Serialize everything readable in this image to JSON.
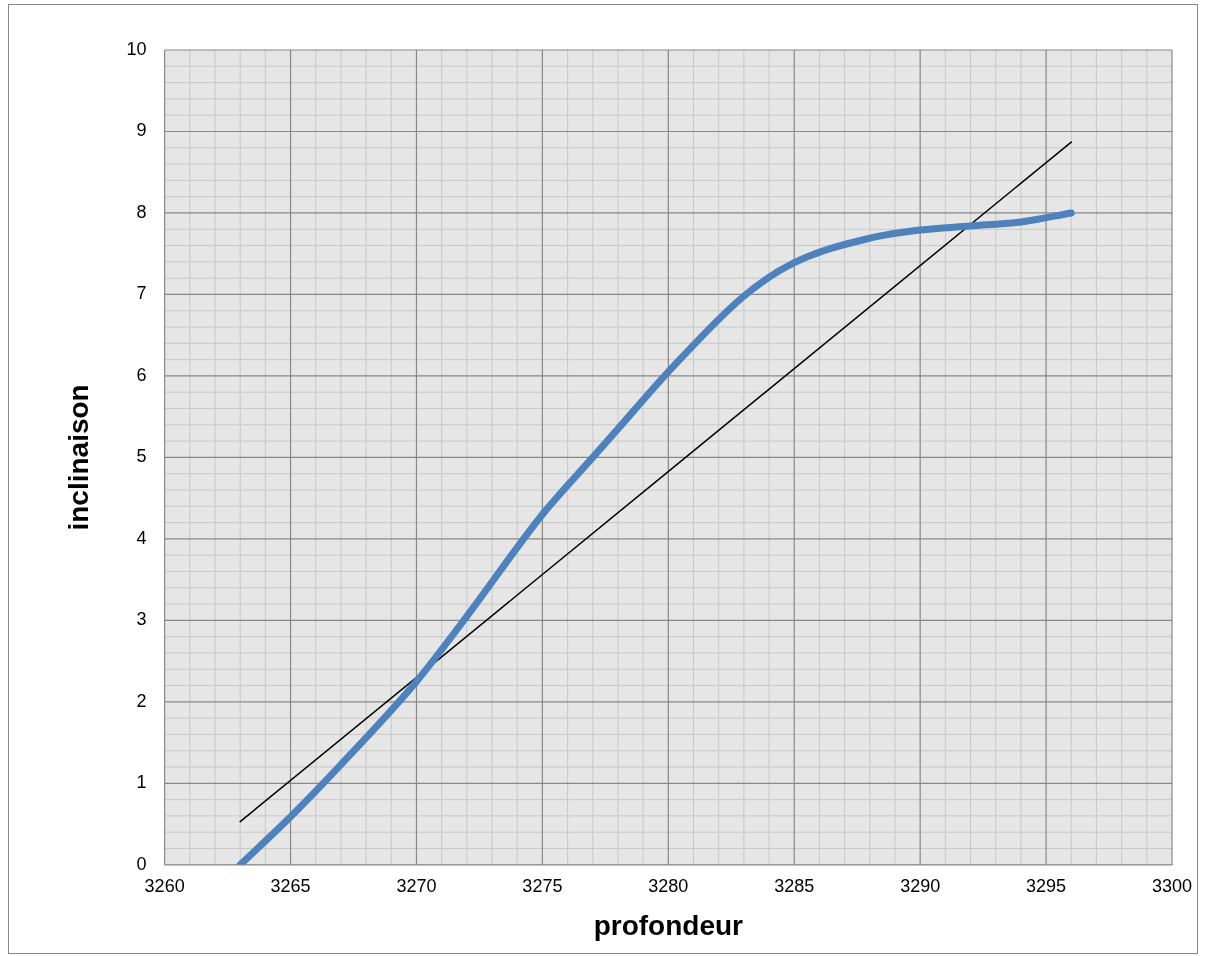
{
  "chart_data": {
    "type": "line",
    "xlabel": "profondeur",
    "ylabel": "inclinaison",
    "xlim": [
      3260,
      3300
    ],
    "xticks": [
      3260,
      3265,
      3270,
      3275,
      3280,
      3285,
      3290,
      3295,
      3300
    ],
    "ylim": [
      0,
      10
    ],
    "yticks": [
      0,
      1,
      2,
      3,
      4,
      5,
      6,
      7,
      8,
      9,
      10
    ],
    "grid": true,
    "legend": false,
    "marker": "none",
    "series": [
      {
        "color": "#4f81bd",
        "x": [
          3263,
          3265,
          3267,
          3270,
          3272,
          3275,
          3277,
          3278,
          3280,
          3283,
          3285,
          3288,
          3290,
          3292,
          3294,
          3296
        ],
        "values": [
          0,
          0.59,
          1.23,
          2.25,
          3.05,
          4.3,
          5.0,
          5.35,
          6.05,
          6.98,
          7.39,
          7.69,
          7.79,
          7.84,
          7.89,
          8.0
        ]
      },
      {
        "color": "#000000",
        "x": [
          3263,
          3296
        ],
        "values": [
          0.53,
          8.87
        ]
      }
    ]
  }
}
